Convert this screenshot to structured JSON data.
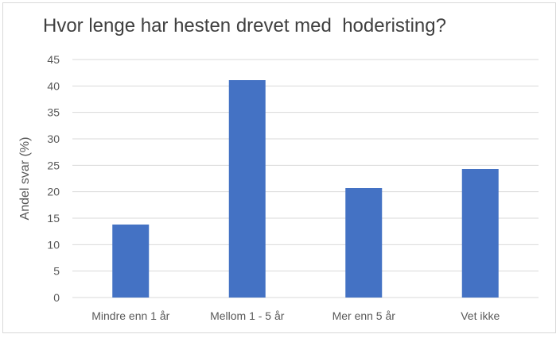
{
  "chart_data": {
    "type": "bar",
    "title": "Hvor lenge har hesten drevet med  hoderisting?",
    "xlabel": "",
    "ylabel": "Andel svar (%)",
    "categories": [
      "Mindre enn 1 år",
      "Mellom 1 - 5 år",
      "Mer enn 5 år",
      "Vet ikke"
    ],
    "values": [
      13.8,
      41.1,
      20.7,
      24.3
    ],
    "ylim": [
      0,
      45
    ],
    "yticks": [
      0,
      5,
      10,
      15,
      20,
      25,
      30,
      35,
      40,
      45
    ],
    "grid": true,
    "legend": "none",
    "bar_color": "#4472c4",
    "grid_color": "#d9d9d9"
  }
}
